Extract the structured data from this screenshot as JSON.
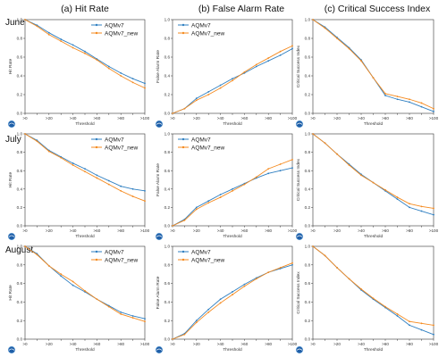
{
  "column_titles": [
    "(a) Hit Rate",
    "(b) False Alarm Rate",
    "(c) Critical Success Index"
  ],
  "row_titles": [
    "June",
    "July",
    "August"
  ],
  "legend_labels": [
    "AQMv7",
    "AQMv7_new"
  ],
  "colors": {
    "AQMv7": "#2f7fc1",
    "AQMv7_new": "#f58a1f"
  },
  "chart_data": [
    {
      "type": "line",
      "row": "June",
      "xlabel": "Threshold",
      "ylabel": "Hit Rate",
      "categories": [
        ">0",
        ">10",
        ">20",
        ">30",
        ">40",
        ">50",
        ">60",
        ">70",
        ">80",
        ">90",
        ">100"
      ],
      "ylim": [
        0,
        1
      ],
      "yticks": [
        0,
        0.2,
        0.4,
        0.6,
        0.8,
        1.0
      ],
      "xtick_labels": [
        ">0",
        ">20",
        ">40",
        ">60",
        ">80",
        ">100"
      ],
      "legend": "top-right",
      "series": [
        {
          "name": "AQMv7",
          "values": [
            1.0,
            0.94,
            0.86,
            0.79,
            0.73,
            0.66,
            0.58,
            0.5,
            0.43,
            0.37,
            0.32
          ]
        },
        {
          "name": "AQMv7_new",
          "values": [
            1.0,
            0.93,
            0.84,
            0.77,
            0.7,
            0.64,
            0.57,
            0.48,
            0.4,
            0.33,
            0.27
          ]
        }
      ]
    },
    {
      "type": "line",
      "row": "June",
      "xlabel": "Threshold",
      "ylabel": "False Alarm Rate",
      "categories": [
        ">0",
        ">10",
        ">20",
        ">30",
        ">40",
        ">50",
        ">60",
        ">70",
        ">80",
        ">90",
        ">100"
      ],
      "ylim": [
        0,
        1
      ],
      "yticks": [
        0,
        0.2,
        0.4,
        0.6,
        0.8,
        1.0
      ],
      "xtick_labels": [
        ">0",
        ">20",
        ">40",
        ">60",
        ">80",
        ">100"
      ],
      "legend": "top-left",
      "series": [
        {
          "name": "AQMv7",
          "values": [
            0.0,
            0.05,
            0.16,
            0.23,
            0.3,
            0.37,
            0.43,
            0.5,
            0.56,
            0.62,
            0.69
          ]
        },
        {
          "name": "AQMv7_new",
          "values": [
            0.0,
            0.05,
            0.14,
            0.2,
            0.27,
            0.35,
            0.44,
            0.52,
            0.59,
            0.66,
            0.72
          ]
        }
      ]
    },
    {
      "type": "line",
      "row": "June",
      "xlabel": "Threshold",
      "ylabel": "Critical Success Index",
      "categories": [
        ">0",
        ">10",
        ">20",
        ">30",
        ">40",
        ">50",
        ">60",
        ">70",
        ">80",
        ">90",
        ">100"
      ],
      "ylim": [
        0,
        1
      ],
      "yticks": [
        0,
        0.2,
        0.4,
        0.6,
        0.8,
        1.0
      ],
      "xtick_labels": [
        ">0",
        ">20",
        ">40",
        ">60",
        ">80",
        ">100"
      ],
      "legend": "none",
      "series": [
        {
          "name": "AQMv7",
          "values": [
            1.0,
            0.92,
            0.81,
            0.7,
            0.57,
            0.38,
            0.19,
            0.15,
            0.12,
            0.07,
            0.02
          ]
        },
        {
          "name": "AQMv7_new",
          "values": [
            1.0,
            0.91,
            0.8,
            0.69,
            0.56,
            0.38,
            0.21,
            0.18,
            0.15,
            0.11,
            0.05
          ]
        }
      ]
    },
    {
      "type": "line",
      "row": "July",
      "xlabel": "Threshold",
      "ylabel": "Hit Rate",
      "categories": [
        ">0",
        ">10",
        ">20",
        ">30",
        ">40",
        ">50",
        ">60",
        ">70",
        ">80",
        ">90",
        ">100"
      ],
      "ylim": [
        0,
        1
      ],
      "yticks": [
        0,
        0.2,
        0.4,
        0.6,
        0.8,
        1.0
      ],
      "xtick_labels": [
        ">0",
        ">20",
        ">40",
        ">60",
        ">80",
        ">100"
      ],
      "legend": "top-right",
      "series": [
        {
          "name": "AQMv7",
          "values": [
            1.0,
            0.93,
            0.82,
            0.75,
            0.68,
            0.62,
            0.55,
            0.49,
            0.43,
            0.4,
            0.38
          ]
        },
        {
          "name": "AQMv7_new",
          "values": [
            1.0,
            0.92,
            0.81,
            0.74,
            0.66,
            0.59,
            0.52,
            0.45,
            0.38,
            0.32,
            0.27
          ]
        }
      ]
    },
    {
      "type": "line",
      "row": "July",
      "xlabel": "Threshold",
      "ylabel": "False Alarm Rate",
      "categories": [
        ">0",
        ">10",
        ">20",
        ">30",
        ">40",
        ">50",
        ">60",
        ">70",
        ">80",
        ">90",
        ">100"
      ],
      "ylim": [
        0,
        1
      ],
      "yticks": [
        0,
        0.2,
        0.4,
        0.6,
        0.8,
        1.0
      ],
      "xtick_labels": [
        ">0",
        ">20",
        ">40",
        ">60",
        ">80",
        ">100"
      ],
      "legend": "top-left",
      "series": [
        {
          "name": "AQMv7",
          "values": [
            0.0,
            0.07,
            0.2,
            0.27,
            0.34,
            0.4,
            0.46,
            0.52,
            0.57,
            0.6,
            0.63
          ]
        },
        {
          "name": "AQMv7_new",
          "values": [
            0.0,
            0.06,
            0.18,
            0.25,
            0.31,
            0.38,
            0.45,
            0.53,
            0.62,
            0.67,
            0.72
          ]
        }
      ]
    },
    {
      "type": "line",
      "row": "July",
      "xlabel": "Threshold",
      "ylabel": "Critical Success Index",
      "categories": [
        ">0",
        ">10",
        ">20",
        ">30",
        ">40",
        ">50",
        ">60",
        ">70",
        ">80",
        ">90",
        ">100"
      ],
      "ylim": [
        0,
        1
      ],
      "yticks": [
        0,
        0.2,
        0.4,
        0.6,
        0.8,
        1.0
      ],
      "xtick_labels": [
        ">0",
        ">20",
        ">40",
        ">60",
        ">80",
        ">100"
      ],
      "legend": "none",
      "series": [
        {
          "name": "AQMv7",
          "values": [
            1.0,
            0.9,
            0.78,
            0.67,
            0.56,
            0.47,
            0.38,
            0.29,
            0.2,
            0.16,
            0.12
          ]
        },
        {
          "name": "AQMv7_new",
          "values": [
            1.0,
            0.9,
            0.78,
            0.66,
            0.55,
            0.47,
            0.39,
            0.31,
            0.24,
            0.21,
            0.19
          ]
        }
      ]
    },
    {
      "type": "line",
      "row": "August",
      "xlabel": "Threshold",
      "ylabel": "Hit Rate",
      "categories": [
        ">0",
        ">10",
        ">20",
        ">30",
        ">40",
        ">50",
        ">60",
        ">70",
        ">80",
        ">90",
        ">100"
      ],
      "ylim": [
        0,
        1
      ],
      "yticks": [
        0,
        0.2,
        0.4,
        0.6,
        0.8,
        1.0
      ],
      "xtick_labels": [
        ">0",
        ">20",
        ">40",
        ">60",
        ">80",
        ">100"
      ],
      "legend": "top-right",
      "series": [
        {
          "name": "AQMv7",
          "values": [
            1.0,
            0.92,
            0.79,
            0.68,
            0.58,
            0.51,
            0.43,
            0.36,
            0.29,
            0.25,
            0.22
          ]
        },
        {
          "name": "AQMv7_new",
          "values": [
            1.0,
            0.91,
            0.79,
            0.7,
            0.62,
            0.52,
            0.43,
            0.35,
            0.27,
            0.23,
            0.19
          ]
        }
      ]
    },
    {
      "type": "line",
      "row": "August",
      "xlabel": "Threshold",
      "ylabel": "False Alarm Rate",
      "categories": [
        ">0",
        ">10",
        ">20",
        ">30",
        ">40",
        ">50",
        ">60",
        ">70",
        ">80",
        ">90",
        ">100"
      ],
      "ylim": [
        0,
        1
      ],
      "yticks": [
        0,
        0.2,
        0.4,
        0.6,
        0.8,
        1.0
      ],
      "xtick_labels": [
        ">0",
        ">20",
        ">40",
        ">60",
        ">80",
        ">100"
      ],
      "legend": "top-left",
      "series": [
        {
          "name": "AQMv7",
          "values": [
            0.0,
            0.06,
            0.2,
            0.32,
            0.43,
            0.51,
            0.59,
            0.66,
            0.72,
            0.76,
            0.8
          ]
        },
        {
          "name": "AQMv7_new",
          "values": [
            0.0,
            0.05,
            0.18,
            0.29,
            0.39,
            0.48,
            0.57,
            0.65,
            0.72,
            0.77,
            0.82
          ]
        }
      ]
    },
    {
      "type": "line",
      "row": "August",
      "xlabel": "Threshold",
      "ylabel": "Critical Success Index",
      "categories": [
        ">0",
        ">10",
        ">20",
        ">30",
        ">40",
        ">50",
        ">60",
        ">70",
        ">80",
        ">90",
        ">100"
      ],
      "ylim": [
        0,
        1
      ],
      "yticks": [
        0,
        0.2,
        0.4,
        0.6,
        0.8,
        1.0
      ],
      "xtick_labels": [
        ">0",
        ">20",
        ">40",
        ">60",
        ">80",
        ">100"
      ],
      "legend": "none",
      "series": [
        {
          "name": "AQMv7",
          "values": [
            1.0,
            0.9,
            0.77,
            0.65,
            0.53,
            0.43,
            0.34,
            0.25,
            0.15,
            0.1,
            0.05
          ]
        },
        {
          "name": "AQMv7_new",
          "values": [
            1.0,
            0.9,
            0.77,
            0.65,
            0.54,
            0.44,
            0.35,
            0.27,
            0.19,
            0.17,
            0.15
          ]
        }
      ]
    }
  ]
}
